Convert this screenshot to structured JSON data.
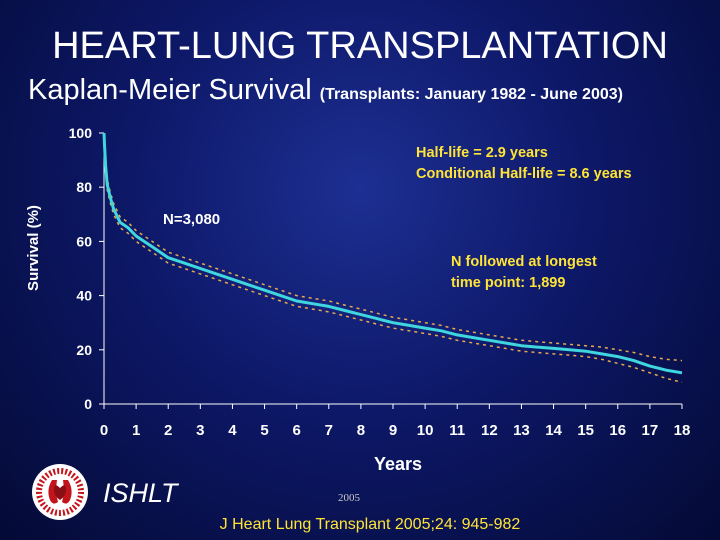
{
  "title": "HEART-LUNG TRANSPLANTATION",
  "subtitle": {
    "main": "Kaplan-Meier Survival",
    "detail": "(Transplants: January 1982 - June 2003)"
  },
  "footer": {
    "organization": "ISHLT",
    "year": "2005",
    "citation": "J Heart Lung Transplant 2005;24: 945-982"
  },
  "colors": {
    "survival_line": "#3fd6df",
    "ci_line": "#e8a84e",
    "annotation_text": "#ffe437",
    "background": "#0d1868"
  },
  "chart_data": {
    "type": "line",
    "xlabel": "Years",
    "ylabel": "Survival (%)",
    "xlim": [
      0,
      18
    ],
    "ylim": [
      0,
      100
    ],
    "x_ticks": [
      0,
      1,
      2,
      3,
      4,
      5,
      6,
      7,
      8,
      9,
      10,
      11,
      12,
      13,
      14,
      15,
      16,
      17,
      18
    ],
    "y_ticks": [
      0,
      20,
      40,
      60,
      80,
      100
    ],
    "grid": false,
    "annotations": {
      "half_life": "Half-life = 2.9 years",
      "conditional_half_life": "Conditional Half-life = 8.6 years",
      "n_total": "N=3,080",
      "n_followed_line1": "N followed at longest",
      "n_followed_line2": "time point: 1,899"
    },
    "series": [
      {
        "role": "estimate",
        "x": [
          0,
          0.02,
          0.05,
          0.1,
          0.2,
          0.3,
          0.5,
          0.75,
          1,
          1.5,
          2,
          2.5,
          3,
          3.5,
          4,
          4.5,
          5,
          5.5,
          6,
          6.5,
          7,
          7.5,
          8,
          8.5,
          9,
          9.5,
          10,
          10.5,
          11,
          11.5,
          12,
          12.5,
          13,
          13.5,
          14,
          14.5,
          15,
          15.5,
          16,
          16.5,
          17,
          17.5,
          18
        ],
        "values": [
          100,
          95,
          88,
          81,
          76,
          72,
          67,
          65,
          62,
          58,
          54,
          52,
          50,
          48,
          46,
          44,
          42,
          40,
          38,
          37,
          36,
          34.5,
          33,
          31.5,
          30,
          29,
          28,
          27,
          25.5,
          24.5,
          23.5,
          22.5,
          21.5,
          21,
          20.5,
          20,
          19.5,
          18.5,
          17.5,
          16,
          14,
          12.5,
          11.5
        ]
      },
      {
        "role": "upper_ci",
        "x": [
          0,
          0.02,
          0.05,
          0.1,
          0.2,
          0.3,
          0.5,
          0.75,
          1,
          1.5,
          2,
          2.5,
          3,
          3.5,
          4,
          4.5,
          5,
          5.5,
          6,
          6.5,
          7,
          7.5,
          8,
          8.5,
          9,
          9.5,
          10,
          10.5,
          11,
          11.5,
          12,
          12.5,
          13,
          13.5,
          14,
          14.5,
          15,
          15.5,
          16,
          16.5,
          17,
          17.5,
          18
        ],
        "values": [
          100,
          96,
          89.5,
          83,
          78,
          74,
          69,
          67,
          64,
          60,
          56,
          54,
          52,
          50,
          48,
          46,
          44,
          42,
          40,
          39,
          38,
          36.5,
          35,
          33.5,
          32,
          31,
          30,
          29,
          27.5,
          26.5,
          25.5,
          24.5,
          23.5,
          23,
          22.5,
          22,
          21.5,
          21,
          20,
          19,
          17.5,
          16.5,
          16
        ]
      },
      {
        "role": "lower_ci",
        "x": [
          0,
          0.02,
          0.05,
          0.1,
          0.2,
          0.3,
          0.5,
          0.75,
          1,
          1.5,
          2,
          2.5,
          3,
          3.5,
          4,
          4.5,
          5,
          5.5,
          6,
          6.5,
          7,
          7.5,
          8,
          8.5,
          9,
          9.5,
          10,
          10.5,
          11,
          11.5,
          12,
          12.5,
          13,
          13.5,
          14,
          14.5,
          15,
          15.5,
          16,
          16.5,
          17,
          17.5,
          18
        ],
        "values": [
          100,
          94,
          86.5,
          79,
          74,
          70,
          65,
          63,
          60,
          56,
          52,
          50,
          48,
          46,
          44,
          42,
          40,
          38,
          36,
          35,
          34,
          32.5,
          31,
          29.5,
          28,
          27,
          26,
          25,
          23.5,
          22.5,
          21.5,
          20.5,
          19.5,
          19,
          18.5,
          18,
          17.5,
          16.5,
          15,
          13.5,
          11.5,
          9.5,
          8
        ]
      }
    ]
  }
}
